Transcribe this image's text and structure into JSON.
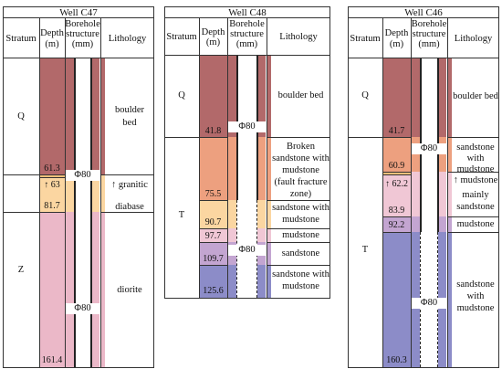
{
  "colors": {
    "q": "#b2696a",
    "t_orange": "#eda07f",
    "t_yellow": "#fbd6a1",
    "z_pink": "#ebb8c8",
    "mud_purple": "#c3a5d1",
    "blue_violet": "#8c8cc8",
    "light_pink": "#f0c7d5"
  },
  "headers": {
    "stratum": "Stratum",
    "depth_1": "Depth",
    "depth_2": "(m)",
    "borehole_1": "Borehole",
    "borehole_2": "structure",
    "borehole_3": "(mm)",
    "lithology": "Lithology"
  },
  "wells": {
    "c47": {
      "title": "Well C47",
      "strata": [
        "Q",
        "Z"
      ],
      "depths": [
        "61.3",
        "↑ 63",
        "81.7",
        "161.4"
      ],
      "phi": [
        "Φ80",
        "Φ80"
      ],
      "litho": [
        "boulder",
        "bed",
        "↑ granitic",
        "diabase",
        "diorite"
      ]
    },
    "c48": {
      "title": "Well C48",
      "strata": [
        "Q",
        "T"
      ],
      "depths": [
        "41.8",
        "75.5",
        "90.7",
        "97.7",
        "109.7",
        "125.6"
      ],
      "phi": [
        "Φ80",
        "Φ80"
      ],
      "litho": [
        "boulder bed",
        "Broken",
        "sandstone with",
        "mudstone",
        "(fault fracture",
        "zone)",
        "sandstone with",
        "mudstone",
        "mudstone",
        "sandstone",
        "sandstone with",
        "mudstone"
      ]
    },
    "c46": {
      "title": "Well C46",
      "strata": [
        "Q",
        "T"
      ],
      "depths": [
        "41.7",
        "60.9",
        "↑ 62.2",
        "83.9",
        "92.2",
        "160.3"
      ],
      "phi": [
        "Φ80",
        "Φ80"
      ],
      "litho": [
        "boulder bed",
        "sandstone",
        "with",
        "mudstone",
        "↑ mudstone",
        "mainly",
        "sandstone",
        "mudstone",
        "sandstone",
        "with",
        "mudstone"
      ]
    }
  }
}
